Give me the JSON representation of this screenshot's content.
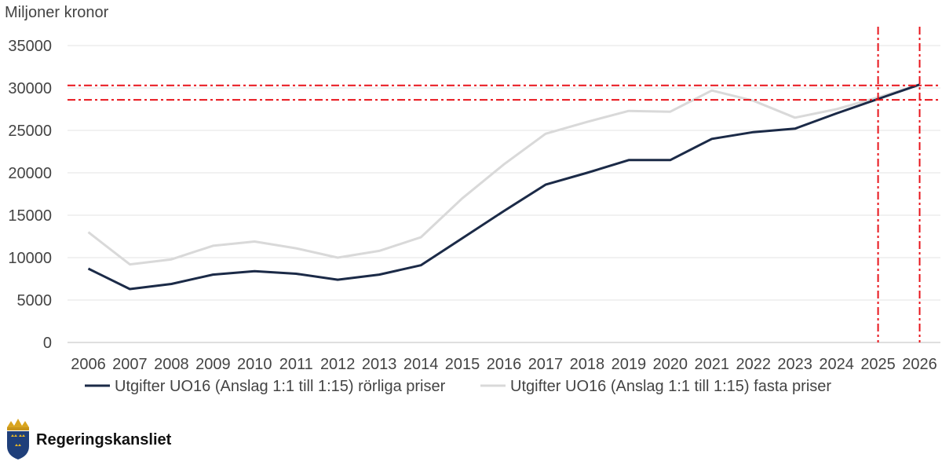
{
  "chart_data": {
    "type": "line",
    "ylabel": "Miljoner kronor",
    "ylim": [
      0,
      35000
    ],
    "yticks": [
      0,
      5000,
      10000,
      15000,
      20000,
      25000,
      30000,
      35000
    ],
    "x": [
      "2006",
      "2007",
      "2008",
      "2009",
      "2010",
      "2011",
      "2012",
      "2013",
      "2014",
      "2015",
      "2016",
      "2017",
      "2018",
      "2019",
      "2020",
      "2021",
      "2022",
      "2023",
      "2024",
      "2025",
      "2026"
    ],
    "series": [
      {
        "name": "Utgifter UO16 (Anslag 1:1 till 1:15) rörliga priser",
        "color": "#1b2a47",
        "values": [
          8700,
          6300,
          6900,
          8000,
          8400,
          8100,
          7400,
          8000,
          9100,
          12300,
          15500,
          18600,
          20000,
          21500,
          21500,
          24000,
          24800,
          25200,
          27000,
          28700,
          30400
        ]
      },
      {
        "name": "Utgifter UO16 (Anslag 1:1 till 1:15) fasta priser",
        "color": "#d9d9d9",
        "values": [
          13000,
          9200,
          9800,
          11400,
          11900,
          11100,
          10000,
          10800,
          12400,
          17000,
          21000,
          24600,
          26000,
          27300,
          27200,
          29700,
          28500,
          26500,
          27500,
          28900,
          30400
        ]
      }
    ],
    "reference_lines": {
      "color": "#e8141b",
      "horizontal": [
        30300,
        28600
      ],
      "vertical": [
        "2025",
        "2026"
      ]
    },
    "grid": "horizontal",
    "legend": "bottom"
  },
  "logo": {
    "text": "Regeringskansliet",
    "icon": "crown-shield-icon"
  }
}
